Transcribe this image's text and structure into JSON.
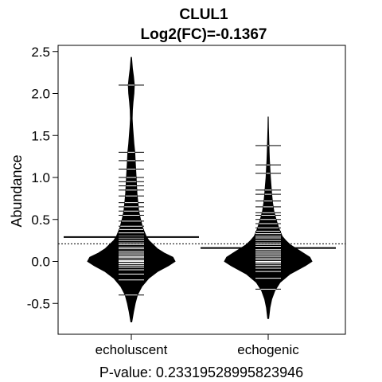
{
  "chart_data": {
    "type": "beanplot",
    "title": "CLUL1",
    "subtitle": "Log2(FC)=-0.1367",
    "xlabel": "P-value: 0.23319528995823946",
    "ylabel": "Abundance",
    "ylim": [
      -0.87,
      2.6
    ],
    "yticks": [
      -0.5,
      0.0,
      0.5,
      1.0,
      1.5,
      2.0,
      2.5
    ],
    "ytick_labels": [
      "-0.5",
      "0.0",
      "0.5",
      "1.0",
      "1.5",
      "2.0",
      "2.5"
    ],
    "categories": [
      "echoluscent",
      "echogenic"
    ],
    "overall_mean": 0.21,
    "groups": [
      {
        "name": "echoluscent",
        "mean": 0.29,
        "range": [
          -0.72,
          2.43
        ],
        "density": [
          [
            -0.72,
            0.01
          ],
          [
            -0.6,
            0.05
          ],
          [
            -0.5,
            0.09
          ],
          [
            -0.4,
            0.14
          ],
          [
            -0.3,
            0.24
          ],
          [
            -0.2,
            0.4
          ],
          [
            -0.12,
            0.6
          ],
          [
            -0.05,
            0.85
          ],
          [
            0.0,
            1.0
          ],
          [
            0.05,
            0.95
          ],
          [
            0.1,
            0.75
          ],
          [
            0.15,
            0.6
          ],
          [
            0.2,
            0.5
          ],
          [
            0.25,
            0.4
          ],
          [
            0.3,
            0.34
          ],
          [
            0.4,
            0.26
          ],
          [
            0.5,
            0.21
          ],
          [
            0.6,
            0.17
          ],
          [
            0.7,
            0.15
          ],
          [
            0.8,
            0.13
          ],
          [
            0.9,
            0.12
          ],
          [
            1.0,
            0.11
          ],
          [
            1.1,
            0.1
          ],
          [
            1.2,
            0.09
          ],
          [
            1.3,
            0.08
          ],
          [
            1.4,
            0.06
          ],
          [
            1.5,
            0.045
          ],
          [
            1.6,
            0.03
          ],
          [
            1.7,
            0.02
          ],
          [
            1.8,
            0.025
          ],
          [
            1.9,
            0.04
          ],
          [
            2.0,
            0.06
          ],
          [
            2.1,
            0.07
          ],
          [
            2.2,
            0.05
          ],
          [
            2.3,
            0.025
          ],
          [
            2.43,
            0.005
          ]
        ],
        "points": [
          -0.4,
          -0.22,
          -0.15,
          -0.1,
          -0.07,
          -0.05,
          -0.03,
          -0.02,
          0.0,
          0.01,
          0.03,
          0.05,
          0.06,
          0.08,
          0.1,
          0.12,
          0.15,
          0.17,
          0.2,
          0.22,
          0.25,
          0.28,
          0.3,
          0.34,
          0.38,
          0.42,
          0.48,
          0.55,
          0.6,
          0.65,
          0.7,
          0.78,
          0.85,
          0.9,
          0.95,
          1.0,
          1.1,
          1.2,
          1.3,
          2.1
        ]
      },
      {
        "name": "echogenic",
        "mean": 0.16,
        "range": [
          -0.68,
          1.72
        ],
        "density": [
          [
            -0.68,
            0.01
          ],
          [
            -0.55,
            0.04
          ],
          [
            -0.45,
            0.08
          ],
          [
            -0.35,
            0.15
          ],
          [
            -0.25,
            0.27
          ],
          [
            -0.15,
            0.5
          ],
          [
            -0.05,
            0.85
          ],
          [
            0.0,
            1.0
          ],
          [
            0.05,
            0.95
          ],
          [
            0.1,
            0.8
          ],
          [
            0.15,
            0.65
          ],
          [
            0.2,
            0.5
          ],
          [
            0.25,
            0.4
          ],
          [
            0.3,
            0.32
          ],
          [
            0.4,
            0.24
          ],
          [
            0.5,
            0.18
          ],
          [
            0.6,
            0.13
          ],
          [
            0.7,
            0.1
          ],
          [
            0.8,
            0.08
          ],
          [
            0.9,
            0.065
          ],
          [
            1.0,
            0.05
          ],
          [
            1.1,
            0.04
          ],
          [
            1.2,
            0.03
          ],
          [
            1.3,
            0.022
          ],
          [
            1.4,
            0.016
          ],
          [
            1.5,
            0.01
          ],
          [
            1.6,
            0.006
          ],
          [
            1.72,
            0.002
          ]
        ],
        "points": [
          -0.33,
          -0.2,
          -0.12,
          -0.08,
          -0.05,
          -0.03,
          -0.01,
          0.0,
          0.02,
          0.04,
          0.06,
          0.08,
          0.1,
          0.12,
          0.14,
          0.16,
          0.18,
          0.2,
          0.22,
          0.25,
          0.28,
          0.3,
          0.33,
          0.36,
          0.4,
          0.45,
          0.5,
          0.55,
          0.58,
          0.65,
          0.72,
          0.8,
          0.85,
          1.05,
          1.15,
          1.38
        ]
      }
    ]
  }
}
